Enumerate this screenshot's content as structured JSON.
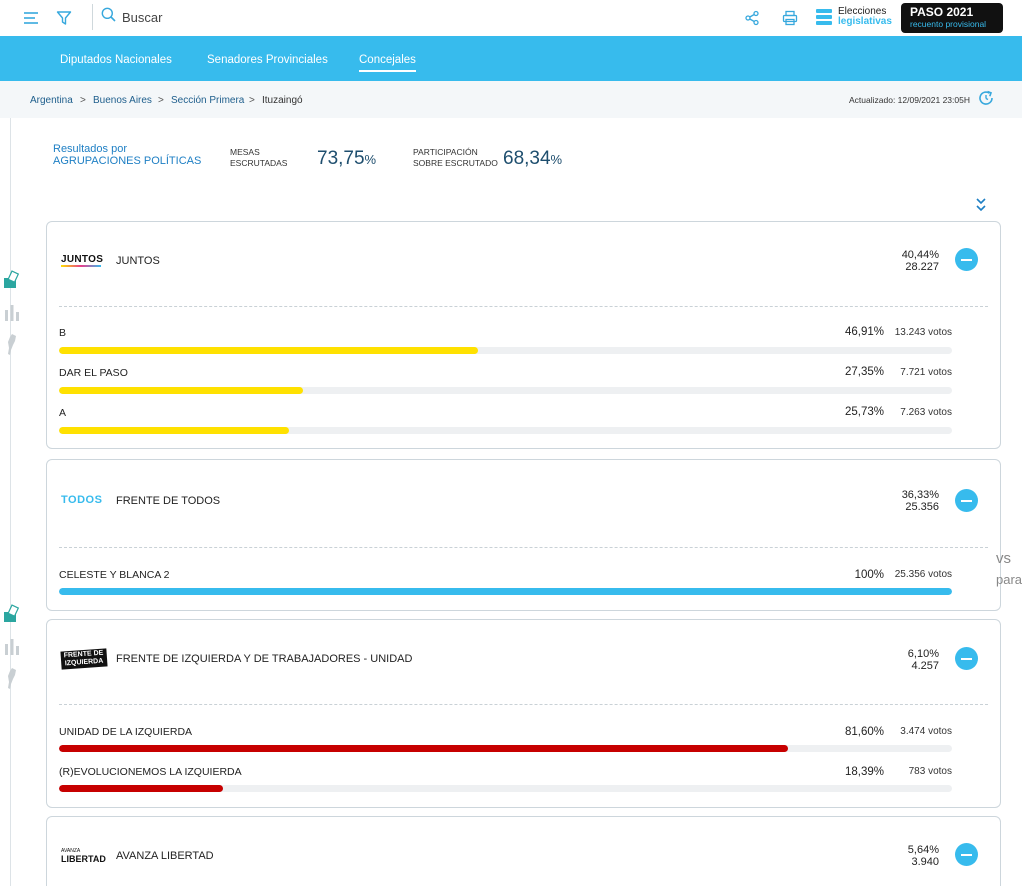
{
  "header": {
    "search_placeholder": "Buscar",
    "brand_line1": "Elecciones",
    "brand_line2": "legislativas",
    "badge_title": "PASO 2021",
    "badge_subtitle": "recuento provisional",
    "icons": [
      "menu-icon",
      "filter-icon",
      "search-icon",
      "share-icon",
      "print-icon"
    ]
  },
  "nav": {
    "tabs": [
      {
        "label": "Diputados Nacionales",
        "active": false
      },
      {
        "label": "Senadores Provinciales",
        "active": false
      },
      {
        "label": "Concejales",
        "active": true
      }
    ]
  },
  "breadcrumb": {
    "items": [
      "Argentina",
      "Buenos Aires",
      "Sección Primera",
      "Ituzaingó"
    ],
    "separator": ">",
    "updated": "Actualizado: 12/09/2021 23:05H"
  },
  "summary": {
    "label_line1": "Resultados por",
    "label_line2": "AGRUPACIONES POLÍTICAS",
    "mesas_label_1": "MESAS",
    "mesas_label_2": "ESCRUTADAS",
    "mesas_value": "73,75",
    "participacion_label_1": "PARTICIPACIÓN",
    "participacion_label_2": "SOBRE ESCRUTADO",
    "participacion_value": "68,34",
    "percent_sign": "%"
  },
  "parties": [
    {
      "name": "JUNTOS",
      "logo_text": "JUNTOS",
      "pct": "40,44%",
      "votes": "28.227",
      "listas": [
        {
          "name": "B",
          "pct": "46,91%",
          "votes": "13.243 votos",
          "share": 46.91
        },
        {
          "name": "DAR EL PASO",
          "pct": "27,35%",
          "votes": "7.721 votos",
          "share": 27.35
        },
        {
          "name": "A",
          "pct": "25,73%",
          "votes": "7.263 votos",
          "share": 25.73
        }
      ]
    },
    {
      "name": "FRENTE DE TODOS",
      "logo_text": "TODOS",
      "pct": "36,33%",
      "votes": "25.356",
      "listas": [
        {
          "name": "CELESTE Y BLANCA 2",
          "pct": "100%",
          "votes": "25.356 votos",
          "share": 100
        }
      ]
    },
    {
      "name": "FRENTE DE IZQUIERDA Y DE TRABAJADORES - UNIDAD",
      "logo_text_1": "FRENTE DE",
      "logo_text_2": "IZQUIERDA",
      "pct": "6,10%",
      "votes": "4.257",
      "listas": [
        {
          "name": "UNIDAD DE LA IZQUIERDA",
          "pct": "81,60%",
          "votes": "3.474 votos",
          "share": 81.6
        },
        {
          "name": "(R)EVOLUCIONEMOS LA IZQUIERDA",
          "pct": "18,39%",
          "votes": "783 votos",
          "share": 18.39
        }
      ]
    },
    {
      "name": "AVANZA LIBERTAD",
      "logo_text_1": "AVANZA",
      "logo_text_2": "LIBERTAD",
      "pct": "5,64%",
      "votes": "3.940",
      "listas": []
    }
  ],
  "ghost_text": [
    "vs",
    "para"
  ],
  "colors": {
    "accent": "#37bbed",
    "juntos_bar": "#ffe100",
    "todos_bar": "#37bbed",
    "fit_bar": "#c70000",
    "dark_value": "#1e4e6e",
    "link": "#1e5e8c"
  }
}
